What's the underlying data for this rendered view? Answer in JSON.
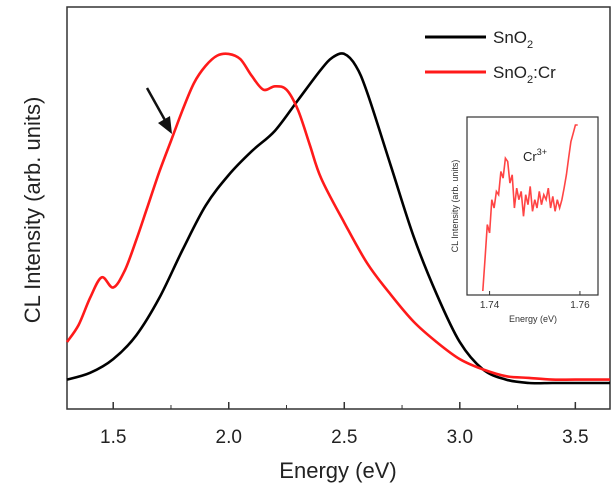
{
  "chart_data": {
    "type": "line",
    "title": "",
    "xlabel": "Energy (eV)",
    "ylabel": "CL Intensity (arb. units)",
    "xlim": [
      1.3,
      3.65
    ],
    "ylim": [
      0,
      1.0
    ],
    "x_ticks": [
      "1.5",
      "2.0",
      "2.5",
      "3.0",
      "3.5"
    ],
    "y_ticks_labeled": false,
    "grid": false,
    "legend_position": "top-right",
    "series": [
      {
        "name": "SnO2",
        "color": "#000000",
        "x": [
          1.3,
          1.4,
          1.5,
          1.6,
          1.7,
          1.8,
          1.9,
          2.0,
          2.1,
          2.2,
          2.3,
          2.4,
          2.45,
          2.5,
          2.55,
          2.6,
          2.7,
          2.8,
          2.9,
          3.0,
          3.1,
          3.2,
          3.3,
          3.4,
          3.5,
          3.65
        ],
        "values": [
          0.01,
          0.03,
          0.07,
          0.14,
          0.25,
          0.39,
          0.52,
          0.61,
          0.68,
          0.74,
          0.83,
          0.92,
          0.955,
          0.965,
          0.93,
          0.85,
          0.64,
          0.43,
          0.26,
          0.12,
          0.04,
          0.01,
          0.0,
          0.0,
          0.0,
          0.0
        ]
      },
      {
        "name": "SnO2:Cr",
        "color": "#ff1a1a",
        "x": [
          1.3,
          1.35,
          1.4,
          1.45,
          1.5,
          1.55,
          1.6,
          1.65,
          1.7,
          1.75,
          1.8,
          1.85,
          1.9,
          1.95,
          2.0,
          2.05,
          2.1,
          2.15,
          2.2,
          2.25,
          2.3,
          2.35,
          2.4,
          2.5,
          2.6,
          2.7,
          2.8,
          2.9,
          3.0,
          3.1,
          3.2,
          3.3,
          3.4,
          3.5,
          3.65
        ],
        "values": [
          0.12,
          0.17,
          0.25,
          0.31,
          0.28,
          0.33,
          0.42,
          0.52,
          0.62,
          0.71,
          0.8,
          0.88,
          0.93,
          0.96,
          0.965,
          0.95,
          0.9,
          0.86,
          0.87,
          0.86,
          0.8,
          0.7,
          0.6,
          0.47,
          0.35,
          0.26,
          0.18,
          0.12,
          0.07,
          0.04,
          0.02,
          0.015,
          0.01,
          0.01,
          0.01
        ]
      }
    ],
    "legend_entries": [
      "SnO",
      "SnO",
      ":Cr"
    ],
    "legend_subscript": "2",
    "annotation_arrow": {
      "x": 1.75,
      "y": 0.7
    },
    "inset": {
      "xlabel": "Energy (eV)",
      "ylabel": "CL Intensity (arb. units)",
      "x_ticks": [
        "1.74",
        "1.76"
      ],
      "xlim": [
        1.735,
        1.764
      ],
      "ylim": [
        0,
        1.0
      ],
      "annotation": "Cr",
      "annotation_superscript": "3+",
      "series": {
        "color": "#ff4444",
        "x": [
          1.7385,
          1.739,
          1.7395,
          1.74,
          1.7405,
          1.741,
          1.7415,
          1.742,
          1.7425,
          1.743,
          1.7435,
          1.744,
          1.7445,
          1.745,
          1.7455,
          1.746,
          1.7465,
          1.747,
          1.7475,
          1.748,
          1.7485,
          1.749,
          1.7495,
          1.75,
          1.7505,
          1.751,
          1.7515,
          1.752,
          1.7525,
          1.753,
          1.7535,
          1.754,
          1.7545,
          1.755,
          1.7555,
          1.756,
          1.7565,
          1.757,
          1.7575,
          1.758,
          1.7585,
          1.759,
          1.7595
        ],
        "values": [
          0.0,
          0.2,
          0.4,
          0.35,
          0.55,
          0.5,
          0.6,
          0.58,
          0.72,
          0.68,
          0.8,
          0.78,
          0.65,
          0.7,
          0.5,
          0.62,
          0.55,
          0.6,
          0.45,
          0.58,
          0.52,
          0.63,
          0.48,
          0.55,
          0.5,
          0.6,
          0.52,
          0.58,
          0.55,
          0.62,
          0.5,
          0.57,
          0.48,
          0.55,
          0.5,
          0.55,
          0.62,
          0.7,
          0.8,
          0.9,
          0.95,
          1.0,
          1.0
        ]
      }
    }
  }
}
